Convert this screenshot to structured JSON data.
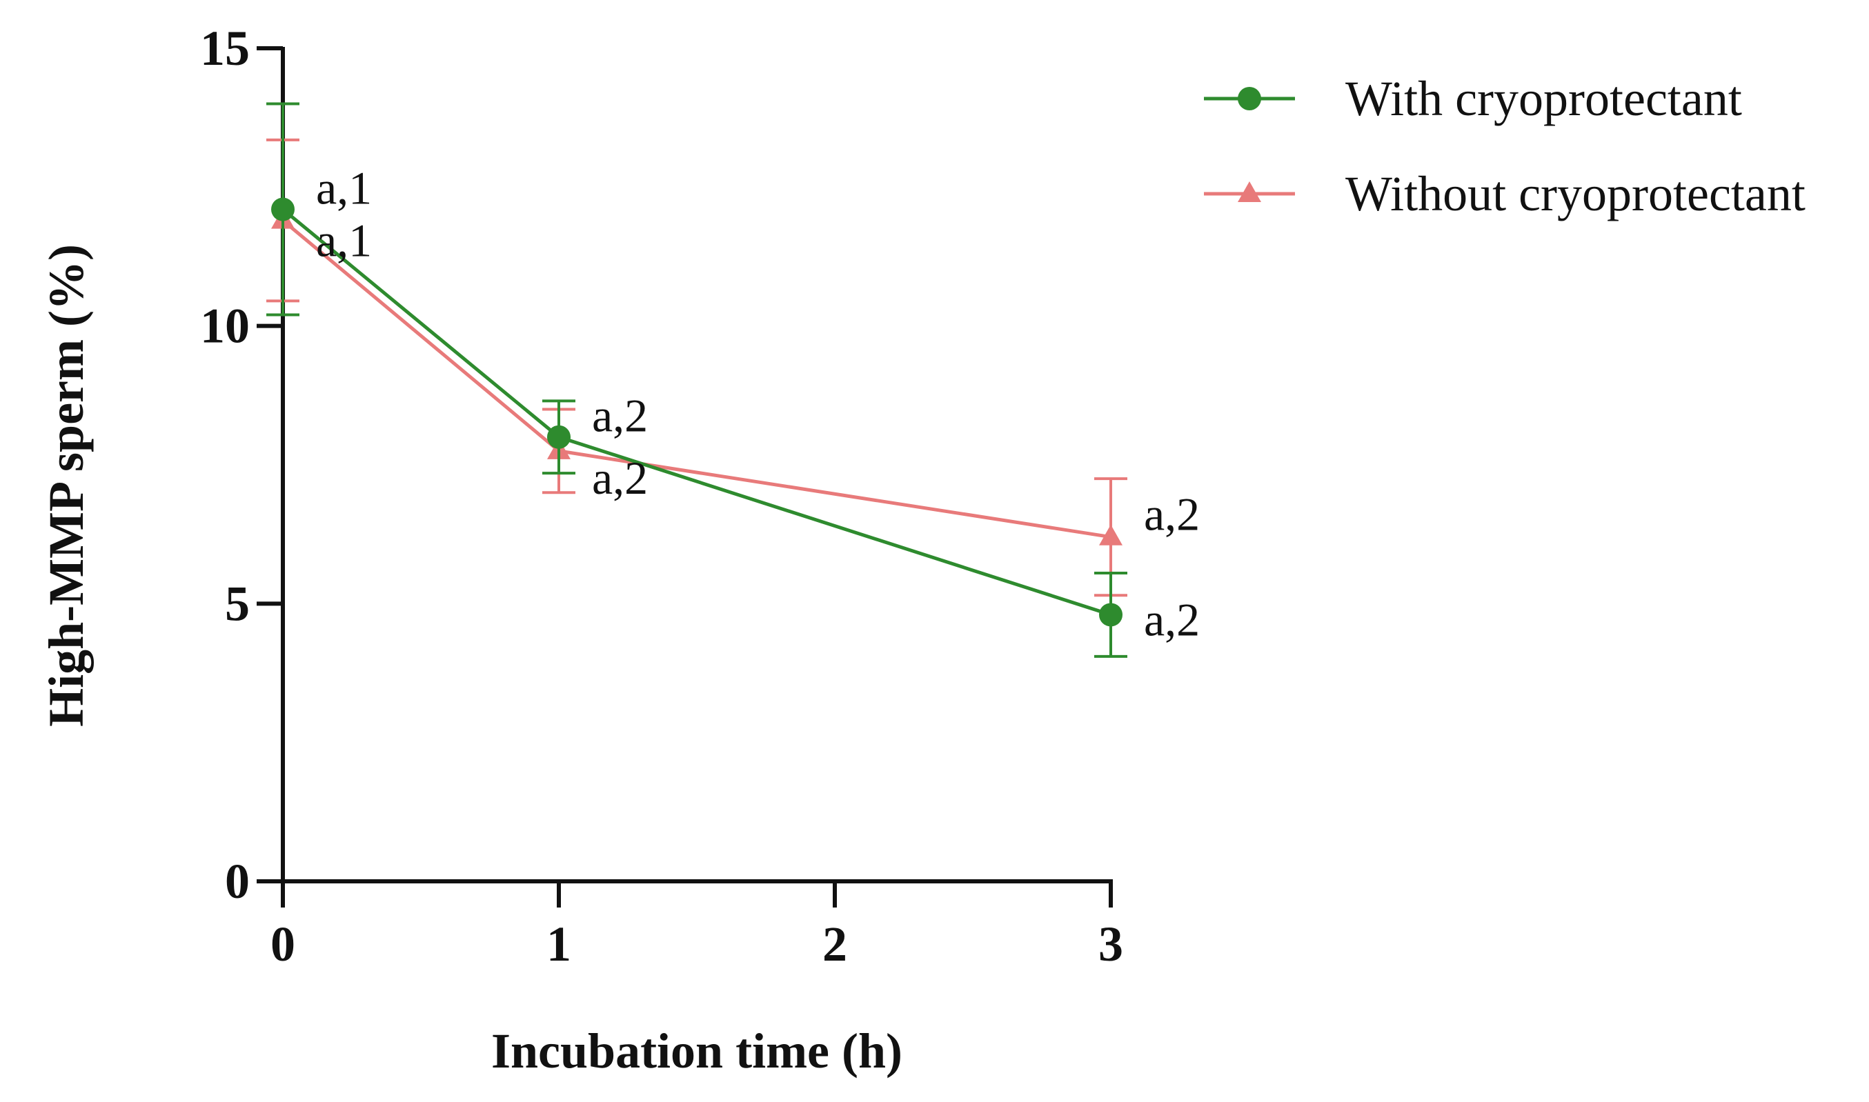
{
  "chart_data": {
    "type": "line",
    "title": "",
    "xlabel": "Incubation time (h)",
    "ylabel": "High-MMP sperm (%)",
    "xlim": [
      0,
      3
    ],
    "ylim": [
      0,
      15
    ],
    "xticks": [
      0,
      1,
      2,
      3
    ],
    "xtick_labels": [
      "0",
      "1",
      "2",
      "3"
    ],
    "yticks": [
      0,
      5,
      10,
      15
    ],
    "ytick_labels": [
      "0",
      "5",
      "10",
      "15"
    ],
    "grid": false,
    "legend_position": "top-right",
    "series": [
      {
        "name": "With cryoprotectant",
        "marker": "circle",
        "color": "#2e8b2e",
        "x": [
          0,
          1,
          3
        ],
        "y": [
          12.1,
          8.0,
          4.8
        ],
        "err": [
          1.9,
          0.65,
          0.75
        ],
        "annotations": [
          "a,1",
          "a,2",
          "a,2"
        ]
      },
      {
        "name": "Without cryoprotectant",
        "marker": "triangle",
        "color": "#e87a7a",
        "x": [
          0,
          1,
          3
        ],
        "y": [
          11.9,
          7.75,
          6.2
        ],
        "err": [
          1.45,
          0.75,
          1.05
        ],
        "annotations": [
          "a,1",
          "a,2",
          "a,2"
        ]
      }
    ]
  }
}
